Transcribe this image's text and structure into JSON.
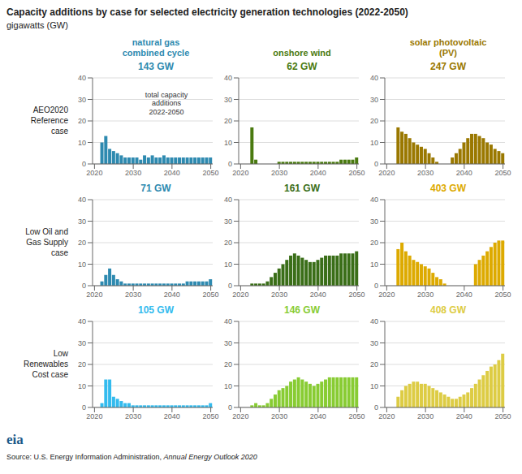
{
  "title": "Capacity additions by case for selected electricity generation technologies (2022-2050)",
  "subtitle": "gigawatts (GW)",
  "col_headers": [
    "natural gas\ncombined cycle",
    "onshore wind",
    "solar photovoltaic\n(PV)"
  ],
  "row_labels": [
    "AEO2020\nReference\ncase",
    "Low Oil and\nGas Supply\ncase",
    "Low\nRenewables\nCost case"
  ],
  "source": [
    "Source: U.S. Energy Information Administration,",
    "Annual Energy Outlook 2020"
  ],
  "logo": {
    "text": "eia",
    "color": "#1a5a8a"
  },
  "chart_data": [
    {
      "type": "bar",
      "title": "143 GW",
      "color": "#2e8ab0",
      "annotation": "total capacity\nadditions\n2022-2050",
      "x": [
        2022,
        2023,
        2024,
        2025,
        2026,
        2027,
        2028,
        2029,
        2030,
        2031,
        2032,
        2033,
        2034,
        2035,
        2036,
        2037,
        2038,
        2039,
        2040,
        2041,
        2042,
        2043,
        2044,
        2045,
        2046,
        2047,
        2048,
        2049,
        2050
      ],
      "values": [
        10,
        13,
        7,
        6,
        5,
        4,
        3,
        3,
        3,
        3,
        2,
        4,
        3,
        4,
        3,
        3,
        4,
        3,
        3,
        3,
        3,
        3,
        3,
        3,
        3,
        3,
        3,
        3,
        3
      ],
      "xlim": [
        2019.5,
        2050.5
      ],
      "xticks": [
        2020,
        2030,
        2040,
        2050
      ],
      "ylim": [
        0,
        40
      ],
      "yticks": [
        0,
        10,
        20,
        30,
        40
      ],
      "grid": true
    },
    {
      "type": "bar",
      "title": "62 GW",
      "color": "#4a7a10",
      "x": [
        2022,
        2023,
        2024,
        2025,
        2026,
        2027,
        2028,
        2029,
        2030,
        2031,
        2032,
        2033,
        2034,
        2035,
        2036,
        2037,
        2038,
        2039,
        2040,
        2041,
        2042,
        2043,
        2044,
        2045,
        2046,
        2047,
        2048,
        2049,
        2050
      ],
      "values": [
        0,
        17,
        2,
        0,
        0,
        0,
        0,
        0,
        1,
        1,
        1,
        1,
        1,
        1,
        1,
        1,
        1,
        1,
        1,
        1,
        1,
        1,
        1,
        1,
        2,
        2,
        2,
        2,
        3
      ],
      "xlim": [
        2019.5,
        2050.5
      ],
      "xticks": [
        2020,
        2030,
        2040,
        2050
      ],
      "ylim": [
        0,
        40
      ],
      "yticks": [
        0,
        10,
        20,
        30,
        40
      ],
      "grid": true
    },
    {
      "type": "bar",
      "title": "247 GW",
      "color": "#9a7800",
      "x": [
        2022,
        2023,
        2024,
        2025,
        2026,
        2027,
        2028,
        2029,
        2030,
        2031,
        2032,
        2033,
        2034,
        2035,
        2036,
        2037,
        2038,
        2039,
        2040,
        2041,
        2042,
        2043,
        2044,
        2045,
        2046,
        2047,
        2048,
        2049,
        2050
      ],
      "values": [
        0,
        17,
        15,
        14,
        12,
        10,
        9,
        8,
        7,
        5,
        3,
        1,
        0,
        0,
        0,
        3,
        5,
        7,
        10,
        12,
        14,
        14,
        13,
        12,
        10,
        9,
        7,
        6,
        5
      ],
      "xlim": [
        2019.5,
        2050.5
      ],
      "xticks": [
        2020,
        2030,
        2040,
        2050
      ],
      "ylim": [
        0,
        40
      ],
      "yticks": [
        0,
        10,
        20,
        30,
        40
      ],
      "grid": true
    },
    {
      "type": "bar",
      "title": "71 GW",
      "color": "#2e8ab0",
      "x": [
        2022,
        2023,
        2024,
        2025,
        2026,
        2027,
        2028,
        2029,
        2030,
        2031,
        2032,
        2033,
        2034,
        2035,
        2036,
        2037,
        2038,
        2039,
        2040,
        2041,
        2042,
        2043,
        2044,
        2045,
        2046,
        2047,
        2048,
        2049,
        2050
      ],
      "values": [
        2,
        5,
        8,
        5,
        3,
        2,
        1,
        1,
        1,
        1,
        1,
        1,
        1,
        1,
        1,
        1,
        1,
        1,
        1,
        1,
        1,
        1,
        2,
        2,
        2,
        2,
        2,
        2,
        3
      ],
      "xlim": [
        2019.5,
        2050.5
      ],
      "xticks": [
        2020,
        2030,
        2040,
        2050
      ],
      "ylim": [
        0,
        40
      ],
      "yticks": [
        0,
        10,
        20,
        30,
        40
      ],
      "grid": true
    },
    {
      "type": "bar",
      "title": "161 GW",
      "color": "#3a6e18",
      "x": [
        2022,
        2023,
        2024,
        2025,
        2026,
        2027,
        2028,
        2029,
        2030,
        2031,
        2032,
        2033,
        2034,
        2035,
        2036,
        2037,
        2038,
        2039,
        2040,
        2041,
        2042,
        2043,
        2044,
        2045,
        2046,
        2047,
        2048,
        2049,
        2050
      ],
      "values": [
        0,
        1,
        1,
        1,
        1,
        2,
        4,
        6,
        8,
        10,
        12,
        14,
        15,
        14,
        13,
        12,
        11,
        11,
        12,
        13,
        14,
        14,
        14,
        14,
        15,
        15,
        15,
        15,
        16
      ],
      "xlim": [
        2019.5,
        2050.5
      ],
      "xticks": [
        2020,
        2030,
        2040,
        2050
      ],
      "ylim": [
        0,
        40
      ],
      "yticks": [
        0,
        10,
        20,
        30,
        40
      ],
      "grid": true
    },
    {
      "type": "bar",
      "title": "403 GW",
      "color": "#ddaa00",
      "x": [
        2022,
        2023,
        2024,
        2025,
        2026,
        2027,
        2028,
        2029,
        2030,
        2031,
        2032,
        2033,
        2034,
        2035,
        2036,
        2037,
        2038,
        2039,
        2040,
        2041,
        2042,
        2043,
        2044,
        2045,
        2046,
        2047,
        2048,
        2049,
        2050
      ],
      "values": [
        0,
        17,
        20,
        16,
        14,
        12,
        11,
        10,
        9,
        8,
        6,
        4,
        3,
        1,
        0,
        0,
        0,
        0,
        0,
        0,
        0,
        10,
        12,
        14,
        16,
        18,
        20,
        21,
        21
      ],
      "xlim": [
        2019.5,
        2050.5
      ],
      "xticks": [
        2020,
        2030,
        2040,
        2050
      ],
      "ylim": [
        0,
        40
      ],
      "yticks": [
        0,
        10,
        20,
        30,
        40
      ],
      "grid": true
    },
    {
      "type": "bar",
      "title": "105 GW",
      "color": "#33bbee",
      "x": [
        2022,
        2023,
        2024,
        2025,
        2026,
        2027,
        2028,
        2029,
        2030,
        2031,
        2032,
        2033,
        2034,
        2035,
        2036,
        2037,
        2038,
        2039,
        2040,
        2041,
        2042,
        2043,
        2044,
        2045,
        2046,
        2047,
        2048,
        2049,
        2050
      ],
      "values": [
        2,
        13,
        13,
        5,
        4,
        3,
        2,
        2,
        1,
        1,
        1,
        1,
        1,
        1,
        1,
        1,
        1,
        1,
        1,
        1,
        1,
        1,
        1,
        1,
        1,
        1,
        1,
        1,
        2
      ],
      "xlim": [
        2019.5,
        2050.5
      ],
      "xticks": [
        2020,
        2030,
        2040,
        2050
      ],
      "ylim": [
        0,
        40
      ],
      "yticks": [
        0,
        10,
        20,
        30,
        40
      ],
      "grid": true
    },
    {
      "type": "bar",
      "title": "146 GW",
      "color": "#88cc33",
      "x": [
        2022,
        2023,
        2024,
        2025,
        2026,
        2027,
        2028,
        2029,
        2030,
        2031,
        2032,
        2033,
        2034,
        2035,
        2036,
        2037,
        2038,
        2039,
        2040,
        2041,
        2042,
        2043,
        2044,
        2045,
        2046,
        2047,
        2048,
        2049,
        2050
      ],
      "values": [
        0,
        1,
        2,
        1,
        1,
        2,
        4,
        6,
        8,
        9,
        10,
        12,
        13,
        14,
        13,
        12,
        11,
        10,
        11,
        12,
        13,
        14,
        14,
        14,
        14,
        14,
        14,
        14,
        14
      ],
      "xlim": [
        2019.5,
        2050.5
      ],
      "xticks": [
        2020,
        2030,
        2040,
        2050
      ],
      "ylim": [
        0,
        40
      ],
      "yticks": [
        0,
        10,
        20,
        30,
        40
      ],
      "grid": true
    },
    {
      "type": "bar",
      "title": "408 GW",
      "color": "#ddcc44",
      "x": [
        2022,
        2023,
        2024,
        2025,
        2026,
        2027,
        2028,
        2029,
        2030,
        2031,
        2032,
        2033,
        2034,
        2035,
        2036,
        2037,
        2038,
        2039,
        2040,
        2041,
        2042,
        2043,
        2044,
        2045,
        2046,
        2047,
        2048,
        2049,
        2050
      ],
      "values": [
        0,
        5,
        8,
        10,
        11,
        12,
        12,
        11,
        11,
        10,
        9,
        8,
        7,
        6,
        5,
        4,
        4,
        5,
        6,
        7,
        9,
        11,
        13,
        15,
        17,
        19,
        20,
        22,
        25
      ],
      "xlim": [
        2019.5,
        2050.5
      ],
      "xticks": [
        2020,
        2030,
        2040,
        2050
      ],
      "ylim": [
        0,
        40
      ],
      "yticks": [
        0,
        10,
        20,
        30,
        40
      ],
      "grid": true
    }
  ]
}
